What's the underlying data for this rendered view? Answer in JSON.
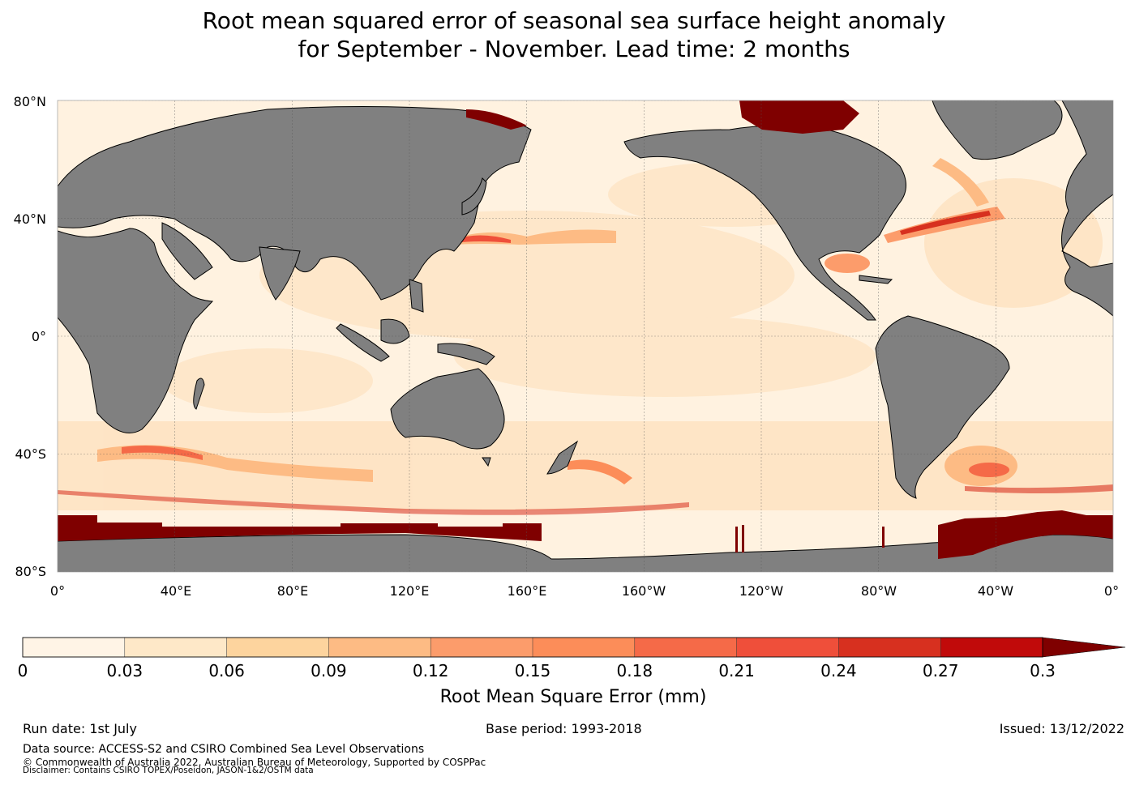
{
  "title_line1": "Root mean squared error of seasonal sea surface height anomaly",
  "title_line2": "for September - November. Lead time: 2 months",
  "map": {
    "lat_labels": [
      "80°N",
      "40°N",
      "0°",
      "40°S",
      "80°S"
    ],
    "lon_labels": [
      "0°",
      "40°E",
      "80°E",
      "120°E",
      "160°E",
      "160°W",
      "120°W",
      "80°W",
      "40°W",
      "0°"
    ],
    "colors": {
      "ocean": "#fff2e0",
      "land": "#808080",
      "ice_high": "#7f0000"
    }
  },
  "colorbar": {
    "label": "Root Mean Square Error (mm)",
    "ticks": [
      "0",
      "0.03",
      "0.06",
      "0.09",
      "0.12",
      "0.15",
      "0.18",
      "0.21",
      "0.24",
      "0.27",
      "0.3"
    ],
    "colors": [
      "#fff4e6",
      "#fee8c8",
      "#fdd49e",
      "#fdbb84",
      "#fc9c6b",
      "#fc8d59",
      "#f56a48",
      "#ef4f3a",
      "#d7301f",
      "#c10a0a",
      "#a30000"
    ],
    "extend_color": "#7f0000"
  },
  "footer": {
    "run_date": "Run date: 1st July",
    "base_period": "Base period: 1993-2018",
    "issued": "Issued: 13/12/2022",
    "source": "Data source: ACCESS-S2 and CSIRO Combined Sea Level Observations",
    "copyright": "© Commonwealth of Australia 2022, Australian Bureau of Meteorology, Supported by COSPPac",
    "disclaimer": "Disclaimer: Contains CSIRO TOPEX/Poseidon, JASON-1&2/OSTM data"
  }
}
